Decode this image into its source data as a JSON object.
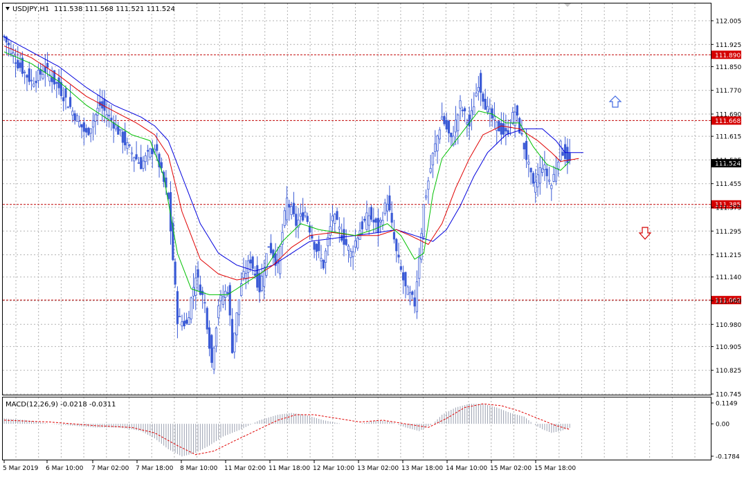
{
  "header": {
    "symbol": "USDJPY,H1",
    "ohlc": "111.538 111.568 111.521 111.524"
  },
  "macd_label": "MACD(12,26,9) -0.0218 -0.0311",
  "colors": {
    "candle": "#3b5bd6",
    "ma_fast": "#00c000",
    "ma_mid": "#e00000",
    "ma_slow": "#0000dd",
    "level_line": "#c00000",
    "level_tag": "#d40000",
    "grid": "#b0b0b0",
    "arrow_up": "#4169e1",
    "arrow_down": "#d40000",
    "price_tag_bg": "#000000"
  },
  "icons": {
    "up_arrow": "hollow-up-arrow-icon",
    "down_arrow": "hollow-down-arrow-icon"
  },
  "chart_data": {
    "type": "candlestick",
    "timeframe": "H1",
    "y_ticks": [
      "112.005",
      "111.925",
      "111.850",
      "111.770",
      "111.690",
      "111.615",
      "111.535",
      "111.455",
      "111.375",
      "111.295",
      "111.215",
      "111.140",
      "111.060",
      "110.980",
      "110.905",
      "110.825",
      "110.745"
    ],
    "ylim": [
      110.745,
      112.005
    ],
    "x_labels": [
      "5 Mar 2019",
      "6 Mar 10:00",
      "7 Mar 02:00",
      "7 Mar 18:00",
      "8 Mar 10:00",
      "11 Mar 02:00",
      "11 Mar 18:00",
      "12 Mar 10:00",
      "13 Mar 02:00",
      "13 Mar 18:00",
      "14 Mar 10:00",
      "15 Mar 02:00",
      "15 Mar 18:00"
    ],
    "levels": [
      {
        "value": 111.89,
        "label": "111.890"
      },
      {
        "value": 111.668,
        "label": "111.668"
      },
      {
        "value": 111.385,
        "label": "111.385"
      },
      {
        "value": 111.062,
        "label": "111.062"
      }
    ],
    "current_price": {
      "value": 111.524,
      "label": "111.524"
    },
    "close_anchors": [
      [
        0,
        111.95
      ],
      [
        6,
        111.86
      ],
      [
        12,
        111.8
      ],
      [
        18,
        111.84
      ],
      [
        24,
        111.78
      ],
      [
        30,
        111.7
      ],
      [
        36,
        111.62
      ],
      [
        42,
        111.72
      ],
      [
        48,
        111.66
      ],
      [
        54,
        111.58
      ],
      [
        60,
        111.52
      ],
      [
        66,
        111.58
      ],
      [
        72,
        111.4
      ],
      [
        76,
        111.0
      ],
      [
        80,
        110.98
      ],
      [
        84,
        111.15
      ],
      [
        88,
        111.05
      ],
      [
        91,
        110.85
      ],
      [
        94,
        111.05
      ],
      [
        98,
        111.1
      ],
      [
        100,
        110.9
      ],
      [
        104,
        111.12
      ],
      [
        108,
        111.2
      ],
      [
        112,
        111.1
      ],
      [
        116,
        111.25
      ],
      [
        120,
        111.18
      ],
      [
        124,
        111.4
      ],
      [
        128,
        111.32
      ],
      [
        132,
        111.36
      ],
      [
        136,
        111.25
      ],
      [
        140,
        111.18
      ],
      [
        144,
        111.35
      ],
      [
        148,
        111.28
      ],
      [
        152,
        111.22
      ],
      [
        156,
        111.3
      ],
      [
        160,
        111.35
      ],
      [
        164,
        111.3
      ],
      [
        168,
        111.4
      ],
      [
        172,
        111.22
      ],
      [
        176,
        111.1
      ],
      [
        180,
        111.05
      ],
      [
        184,
        111.38
      ],
      [
        188,
        111.55
      ],
      [
        192,
        111.68
      ],
      [
        196,
        111.6
      ],
      [
        200,
        111.72
      ],
      [
        204,
        111.65
      ],
      [
        208,
        111.8
      ],
      [
        212,
        111.7
      ],
      [
        216,
        111.65
      ],
      [
        220,
        111.62
      ],
      [
        224,
        111.7
      ],
      [
        228,
        111.58
      ],
      [
        232,
        111.44
      ],
      [
        236,
        111.52
      ],
      [
        240,
        111.45
      ],
      [
        244,
        111.58
      ],
      [
        248,
        111.524
      ]
    ],
    "ma_fast_anchors": [
      [
        0,
        111.9
      ],
      [
        12,
        111.86
      ],
      [
        24,
        111.8
      ],
      [
        36,
        111.72
      ],
      [
        48,
        111.66
      ],
      [
        56,
        111.62
      ],
      [
        64,
        111.6
      ],
      [
        70,
        111.48
      ],
      [
        76,
        111.22
      ],
      [
        82,
        111.1
      ],
      [
        90,
        111.08
      ],
      [
        98,
        111.08
      ],
      [
        106,
        111.12
      ],
      [
        114,
        111.16
      ],
      [
        122,
        111.26
      ],
      [
        130,
        111.32
      ],
      [
        138,
        111.3
      ],
      [
        146,
        111.29
      ],
      [
        154,
        111.28
      ],
      [
        162,
        111.3
      ],
      [
        168,
        111.32
      ],
      [
        174,
        111.28
      ],
      [
        180,
        111.2
      ],
      [
        184,
        111.22
      ],
      [
        188,
        111.42
      ],
      [
        192,
        111.54
      ],
      [
        198,
        111.6
      ],
      [
        204,
        111.66
      ],
      [
        208,
        111.7
      ],
      [
        214,
        111.69
      ],
      [
        220,
        111.66
      ],
      [
        226,
        111.66
      ],
      [
        232,
        111.58
      ],
      [
        238,
        111.52
      ],
      [
        244,
        111.5
      ],
      [
        248,
        111.53
      ]
    ],
    "ma_mid_anchors": [
      [
        0,
        111.92
      ],
      [
        12,
        111.88
      ],
      [
        24,
        111.82
      ],
      [
        36,
        111.75
      ],
      [
        48,
        111.7
      ],
      [
        58,
        111.66
      ],
      [
        66,
        111.62
      ],
      [
        72,
        111.55
      ],
      [
        78,
        111.36
      ],
      [
        86,
        111.2
      ],
      [
        94,
        111.15
      ],
      [
        102,
        111.13
      ],
      [
        110,
        111.14
      ],
      [
        118,
        111.18
      ],
      [
        126,
        111.24
      ],
      [
        134,
        111.28
      ],
      [
        144,
        111.29
      ],
      [
        154,
        111.28
      ],
      [
        164,
        111.28
      ],
      [
        172,
        111.3
      ],
      [
        178,
        111.28
      ],
      [
        186,
        111.25
      ],
      [
        192,
        111.32
      ],
      [
        198,
        111.44
      ],
      [
        204,
        111.54
      ],
      [
        210,
        111.62
      ],
      [
        218,
        111.65
      ],
      [
        226,
        111.64
      ],
      [
        234,
        111.6
      ],
      [
        240,
        111.56
      ],
      [
        244,
        111.53
      ],
      [
        252,
        111.54
      ]
    ],
    "ma_slow_anchors": [
      [
        0,
        111.95
      ],
      [
        12,
        111.9
      ],
      [
        24,
        111.85
      ],
      [
        36,
        111.78
      ],
      [
        48,
        111.72
      ],
      [
        60,
        111.68
      ],
      [
        66,
        111.65
      ],
      [
        72,
        111.6
      ],
      [
        78,
        111.48
      ],
      [
        86,
        111.32
      ],
      [
        94,
        111.22
      ],
      [
        102,
        111.18
      ],
      [
        110,
        111.16
      ],
      [
        118,
        111.18
      ],
      [
        126,
        111.22
      ],
      [
        134,
        111.26
      ],
      [
        144,
        111.27
      ],
      [
        154,
        111.28
      ],
      [
        164,
        111.29
      ],
      [
        172,
        111.3
      ],
      [
        180,
        111.28
      ],
      [
        188,
        111.26
      ],
      [
        194,
        111.3
      ],
      [
        200,
        111.38
      ],
      [
        206,
        111.48
      ],
      [
        212,
        111.56
      ],
      [
        220,
        111.62
      ],
      [
        228,
        111.64
      ],
      [
        236,
        111.64
      ],
      [
        242,
        111.6
      ],
      [
        246,
        111.56
      ],
      [
        254,
        111.56
      ]
    ],
    "macd": {
      "y_ticks": [
        "0.1149",
        "0.00",
        "-0.1784"
      ],
      "ylim": [
        -0.1784,
        0.1149
      ],
      "hist_anchors": [
        [
          0,
          0.03
        ],
        [
          10,
          0.02
        ],
        [
          20,
          0.0
        ],
        [
          30,
          -0.01
        ],
        [
          40,
          -0.02
        ],
        [
          50,
          -0.02
        ],
        [
          56,
          -0.03
        ],
        [
          60,
          -0.04
        ],
        [
          66,
          -0.08
        ],
        [
          72,
          -0.14
        ],
        [
          78,
          -0.18
        ],
        [
          84,
          -0.16
        ],
        [
          90,
          -0.12
        ],
        [
          96,
          -0.07
        ],
        [
          104,
          -0.03
        ],
        [
          112,
          0.02
        ],
        [
          120,
          0.05
        ],
        [
          126,
          0.06
        ],
        [
          132,
          0.05
        ],
        [
          140,
          0.02
        ],
        [
          148,
          0.0
        ],
        [
          156,
          0.0
        ],
        [
          164,
          0.02
        ],
        [
          170,
          0.01
        ],
        [
          176,
          -0.02
        ],
        [
          182,
          -0.04
        ],
        [
          188,
          0.0
        ],
        [
          192,
          0.05
        ],
        [
          198,
          0.09
        ],
        [
          204,
          0.11
        ],
        [
          210,
          0.11
        ],
        [
          216,
          0.09
        ],
        [
          222,
          0.06
        ],
        [
          228,
          0.04
        ],
        [
          232,
          0.0
        ],
        [
          236,
          -0.03
        ],
        [
          240,
          -0.05
        ],
        [
          244,
          -0.04
        ],
        [
          248,
          -0.022
        ]
      ],
      "signal_anchors": [
        [
          0,
          0.02
        ],
        [
          20,
          0.01
        ],
        [
          40,
          -0.01
        ],
        [
          56,
          -0.02
        ],
        [
          66,
          -0.05
        ],
        [
          76,
          -0.12
        ],
        [
          84,
          -0.17
        ],
        [
          92,
          -0.15
        ],
        [
          100,
          -0.1
        ],
        [
          110,
          -0.04
        ],
        [
          120,
          0.02
        ],
        [
          128,
          0.05
        ],
        [
          136,
          0.05
        ],
        [
          146,
          0.03
        ],
        [
          156,
          0.01
        ],
        [
          166,
          0.02
        ],
        [
          176,
          0.0
        ],
        [
          186,
          -0.02
        ],
        [
          194,
          0.03
        ],
        [
          202,
          0.09
        ],
        [
          210,
          0.11
        ],
        [
          218,
          0.1
        ],
        [
          226,
          0.07
        ],
        [
          234,
          0.03
        ],
        [
          242,
          -0.01
        ],
        [
          248,
          -0.031
        ]
      ]
    }
  }
}
